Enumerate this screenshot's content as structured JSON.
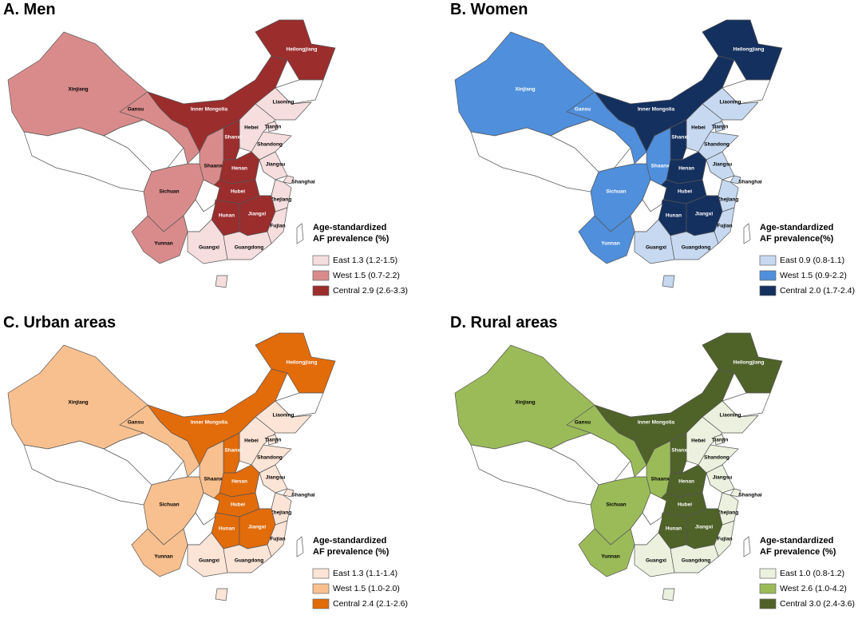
{
  "panels": [
    {
      "title": "A. Men",
      "legend_title": [
        "Age-standardized",
        "AF prevalence (%)"
      ],
      "legend": [
        {
          "label": "East 1.3 (1.2-1.5)",
          "color": "#f6dede"
        },
        {
          "label": "West 1.5 (0.7-2.2)",
          "color": "#d98b8b"
        },
        {
          "label": "Central 2.9 (2.6-3.3)",
          "color": "#9b2d2d"
        }
      ]
    },
    {
      "title": "B. Women",
      "legend_title": [
        "Age-standardized",
        "AF prevalence(%)"
      ],
      "legend": [
        {
          "label": "East 0.9 (0.8-1.1)",
          "color": "#c6d9f1"
        },
        {
          "label": "West 1.5 (0.9-2.2)",
          "color": "#4f8fdc"
        },
        {
          "label": "Central 2.0 (1.7-2.4)",
          "color": "#14305e"
        }
      ]
    },
    {
      "title": "C. Urban areas",
      "legend_title": [
        "Age-standardized",
        "AF prevalence (%)"
      ],
      "legend": [
        {
          "label": "East 1.3 (1.1-1.4)",
          "color": "#fce4d6"
        },
        {
          "label": "West 1.5 (1.0-2.0)",
          "color": "#f8c08f"
        },
        {
          "label": "Central 2.4 (2.1-2.6)",
          "color": "#e26b0a"
        }
      ]
    },
    {
      "title": "D. Rural areas",
      "legend_title": [
        "Age-standardized",
        "AF prevalence (%)"
      ],
      "legend": [
        {
          "label": "East 1.0 (0.8-1.2)",
          "color": "#ebf1de"
        },
        {
          "label": "West 2.6 (1.0-4.2)",
          "color": "#9bbb59"
        },
        {
          "label": "Central 3.0 (2.4-3.6)",
          "color": "#4f6228"
        }
      ]
    }
  ],
  "provinces": [
    "Xinjiang",
    "Gansu",
    "Inner Mongolia",
    "Heilongjiang",
    "Liaoning",
    "Hebei",
    "Tianjin",
    "Shanxi",
    "Shaanxi",
    "Shandong",
    "Henan",
    "Jiangsu",
    "Hubei",
    "Shanghai",
    "Sichuan",
    "Hunan",
    "Jiangxi",
    "Zhejiang",
    "Fujian",
    "Yunnan",
    "Guangxi",
    "Guangdong"
  ]
}
